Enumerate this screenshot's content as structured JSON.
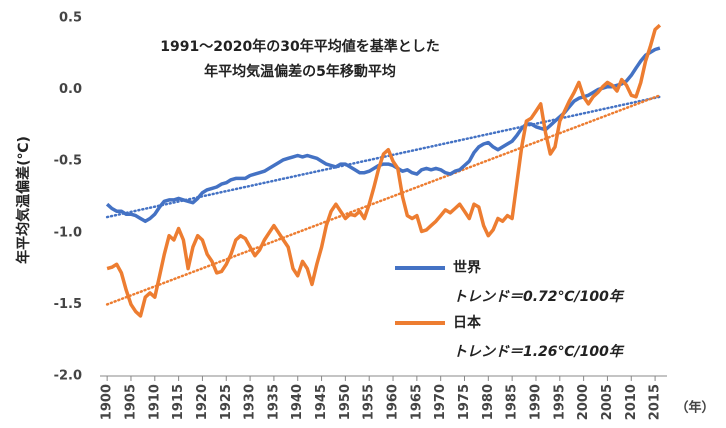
{
  "chart_data": {
    "type": "line",
    "title": [
      "1991～2020年の30年平均値を基準とした",
      "年平均気温偏差の5年移動平均"
    ],
    "y_label": "年平均気温偏差(℃)",
    "x_label": "（年）",
    "x": [
      1900,
      1901,
      1902,
      1903,
      1904,
      1905,
      1906,
      1907,
      1908,
      1909,
      1910,
      1911,
      1912,
      1913,
      1914,
      1915,
      1916,
      1917,
      1918,
      1919,
      1920,
      1921,
      1922,
      1923,
      1924,
      1925,
      1926,
      1927,
      1928,
      1929,
      1930,
      1931,
      1932,
      1933,
      1934,
      1935,
      1936,
      1937,
      1938,
      1939,
      1940,
      1941,
      1942,
      1943,
      1944,
      1945,
      1946,
      1947,
      1948,
      1949,
      1950,
      1951,
      1952,
      1953,
      1954,
      1955,
      1956,
      1957,
      1958,
      1959,
      1960,
      1961,
      1962,
      1963,
      1964,
      1965,
      1966,
      1967,
      1968,
      1969,
      1970,
      1971,
      1972,
      1973,
      1974,
      1975,
      1976,
      1977,
      1978,
      1979,
      1980,
      1981,
      1982,
      1983,
      1984,
      1985,
      1986,
      1987,
      1988,
      1989,
      1990,
      1991,
      1992,
      1993,
      1994,
      1995,
      1996,
      1997,
      1998,
      1999,
      2000,
      2001,
      2002,
      2003,
      2004,
      2005,
      2006,
      2007,
      2008,
      2009,
      2010,
      2011,
      2012,
      2013,
      2014,
      2015,
      2016
    ],
    "series": [
      {
        "name": "世界",
        "trend_label": "トレンド＝0.72℃/100年",
        "color": "#4472c4",
        "values": [
          -0.8,
          -0.83,
          -0.85,
          -0.85,
          -0.87,
          -0.87,
          -0.88,
          -0.9,
          -0.92,
          -0.9,
          -0.87,
          -0.82,
          -0.78,
          -0.77,
          -0.77,
          -0.76,
          -0.77,
          -0.78,
          -0.79,
          -0.76,
          -0.72,
          -0.7,
          -0.69,
          -0.68,
          -0.66,
          -0.65,
          -0.63,
          -0.62,
          -0.62,
          -0.62,
          -0.6,
          -0.59,
          -0.58,
          -0.57,
          -0.55,
          -0.53,
          -0.51,
          -0.49,
          -0.48,
          -0.47,
          -0.46,
          -0.47,
          -0.46,
          -0.47,
          -0.48,
          -0.5,
          -0.52,
          -0.53,
          -0.54,
          -0.52,
          -0.52,
          -0.54,
          -0.56,
          -0.58,
          -0.58,
          -0.57,
          -0.55,
          -0.53,
          -0.52,
          -0.52,
          -0.53,
          -0.55,
          -0.57,
          -0.56,
          -0.58,
          -0.59,
          -0.56,
          -0.55,
          -0.56,
          -0.55,
          -0.56,
          -0.58,
          -0.59,
          -0.57,
          -0.56,
          -0.53,
          -0.5,
          -0.44,
          -0.4,
          -0.38,
          -0.37,
          -0.4,
          -0.42,
          -0.4,
          -0.38,
          -0.36,
          -0.32,
          -0.27,
          -0.24,
          -0.24,
          -0.26,
          -0.27,
          -0.28,
          -0.25,
          -0.22,
          -0.19,
          -0.16,
          -0.12,
          -0.08,
          -0.06,
          -0.05,
          -0.04,
          -0.02,
          0.0,
          0.01,
          0.02,
          0.02,
          0.03,
          0.04,
          0.06,
          0.1,
          0.15,
          0.2,
          0.24,
          0.26,
          0.28,
          0.29
        ],
        "trend": {
          "x": [
            1900,
            2016
          ],
          "values": [
            -0.89,
            -0.05
          ]
        }
      },
      {
        "name": "日本",
        "trend_label": "トレンド＝1.26℃/100年",
        "color": "#ed7d31",
        "values": [
          -1.25,
          -1.24,
          -1.22,
          -1.28,
          -1.4,
          -1.5,
          -1.55,
          -1.58,
          -1.45,
          -1.42,
          -1.45,
          -1.3,
          -1.15,
          -1.02,
          -1.05,
          -0.97,
          -1.05,
          -1.25,
          -1.1,
          -1.02,
          -1.05,
          -1.15,
          -1.2,
          -1.28,
          -1.27,
          -1.22,
          -1.15,
          -1.05,
          -1.02,
          -1.04,
          -1.1,
          -1.16,
          -1.12,
          -1.05,
          -1.0,
          -0.95,
          -1.0,
          -1.05,
          -1.1,
          -1.25,
          -1.3,
          -1.2,
          -1.25,
          -1.36,
          -1.22,
          -1.1,
          -0.95,
          -0.85,
          -0.8,
          -0.85,
          -0.9,
          -0.87,
          -0.88,
          -0.85,
          -0.9,
          -0.8,
          -0.68,
          -0.55,
          -0.45,
          -0.42,
          -0.5,
          -0.55,
          -0.75,
          -0.88,
          -0.9,
          -0.88,
          -0.99,
          -0.98,
          -0.95,
          -0.92,
          -0.88,
          -0.84,
          -0.86,
          -0.83,
          -0.8,
          -0.85,
          -0.9,
          -0.8,
          -0.82,
          -0.95,
          -1.02,
          -0.98,
          -0.9,
          -0.92,
          -0.88,
          -0.9,
          -0.65,
          -0.4,
          -0.22,
          -0.2,
          -0.15,
          -0.1,
          -0.3,
          -0.45,
          -0.4,
          -0.22,
          -0.15,
          -0.08,
          -0.02,
          0.05,
          -0.05,
          -0.1,
          -0.05,
          -0.02,
          0.02,
          0.05,
          0.03,
          -0.01,
          0.07,
          0.03,
          -0.04,
          -0.05,
          0.05,
          0.2,
          0.3,
          0.42,
          0.45
        ],
        "trend": {
          "x": [
            1900,
            2016
          ],
          "values": [
            -1.5,
            -0.04
          ]
        }
      }
    ],
    "xlim": [
      1898.5,
      2017.5
    ],
    "xticks": [
      1900,
      1905,
      1910,
      1915,
      1920,
      1925,
      1930,
      1935,
      1940,
      1945,
      1950,
      1955,
      1960,
      1965,
      1970,
      1975,
      1980,
      1985,
      1990,
      1995,
      2000,
      2005,
      2010,
      2015
    ],
    "ylim": [
      -2.0,
      0.5
    ],
    "yticks": [
      0.5,
      {
        "value": 0,
        "label": "0.0"
      },
      -0.5,
      {
        "value": -1,
        "label": "-1.0"
      },
      -1.5,
      {
        "value": -2,
        "label": "-2.0"
      }
    ],
    "grid": false
  }
}
